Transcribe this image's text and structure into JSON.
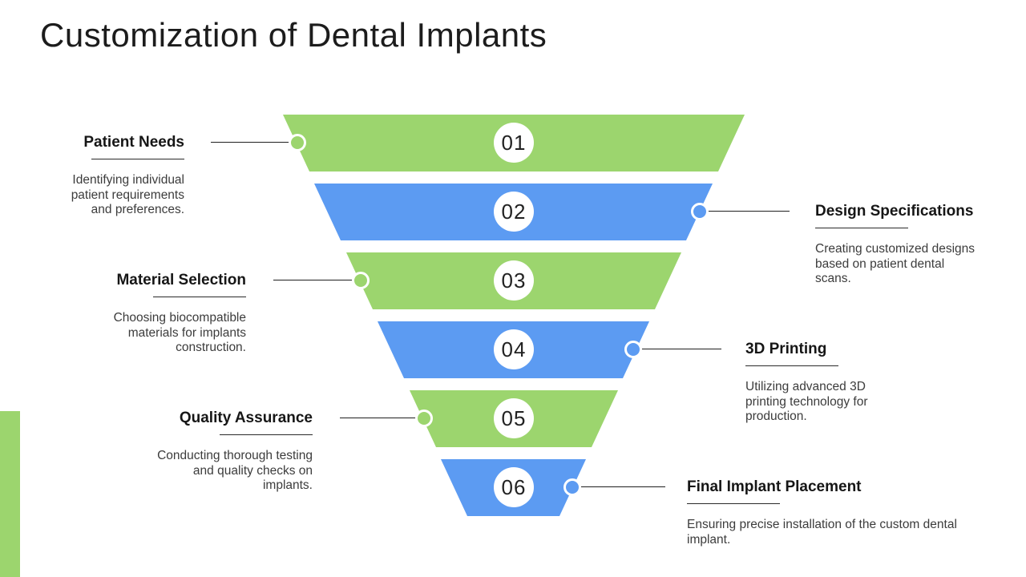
{
  "slide": {
    "title": "Customization of Dental Implants"
  },
  "colors": {
    "green": "#9CD56E",
    "blue": "#5C9BF2"
  },
  "accent_bar": {
    "color": "green"
  },
  "stages": [
    {
      "number": "01",
      "label": "Patient Needs",
      "description": "Identifying individual\npatient requirements\nand preferences.",
      "side": "left",
      "color": "green"
    },
    {
      "number": "02",
      "label": "Design Specifications",
      "description": "Creating customized designs\nbased on patient dental\nscans.",
      "side": "right",
      "color": "blue"
    },
    {
      "number": "03",
      "label": "Material Selection",
      "description": "Choosing biocompatible\nmaterials for implants\nconstruction.",
      "side": "left",
      "color": "green"
    },
    {
      "number": "04",
      "label": "3D Printing",
      "description": "Utilizing advanced 3D\nprinting technology for\nproduction.",
      "side": "right",
      "color": "blue"
    },
    {
      "number": "05",
      "label": "Quality Assurance",
      "description": "Conducting thorough testing\nand quality checks on\nimplants.",
      "side": "left",
      "color": "green"
    },
    {
      "number": "06",
      "label": "Final Implant Placement",
      "description": "Ensuring precise installation of the custom dental\nimplant.",
      "side": "right",
      "color": "blue"
    }
  ]
}
